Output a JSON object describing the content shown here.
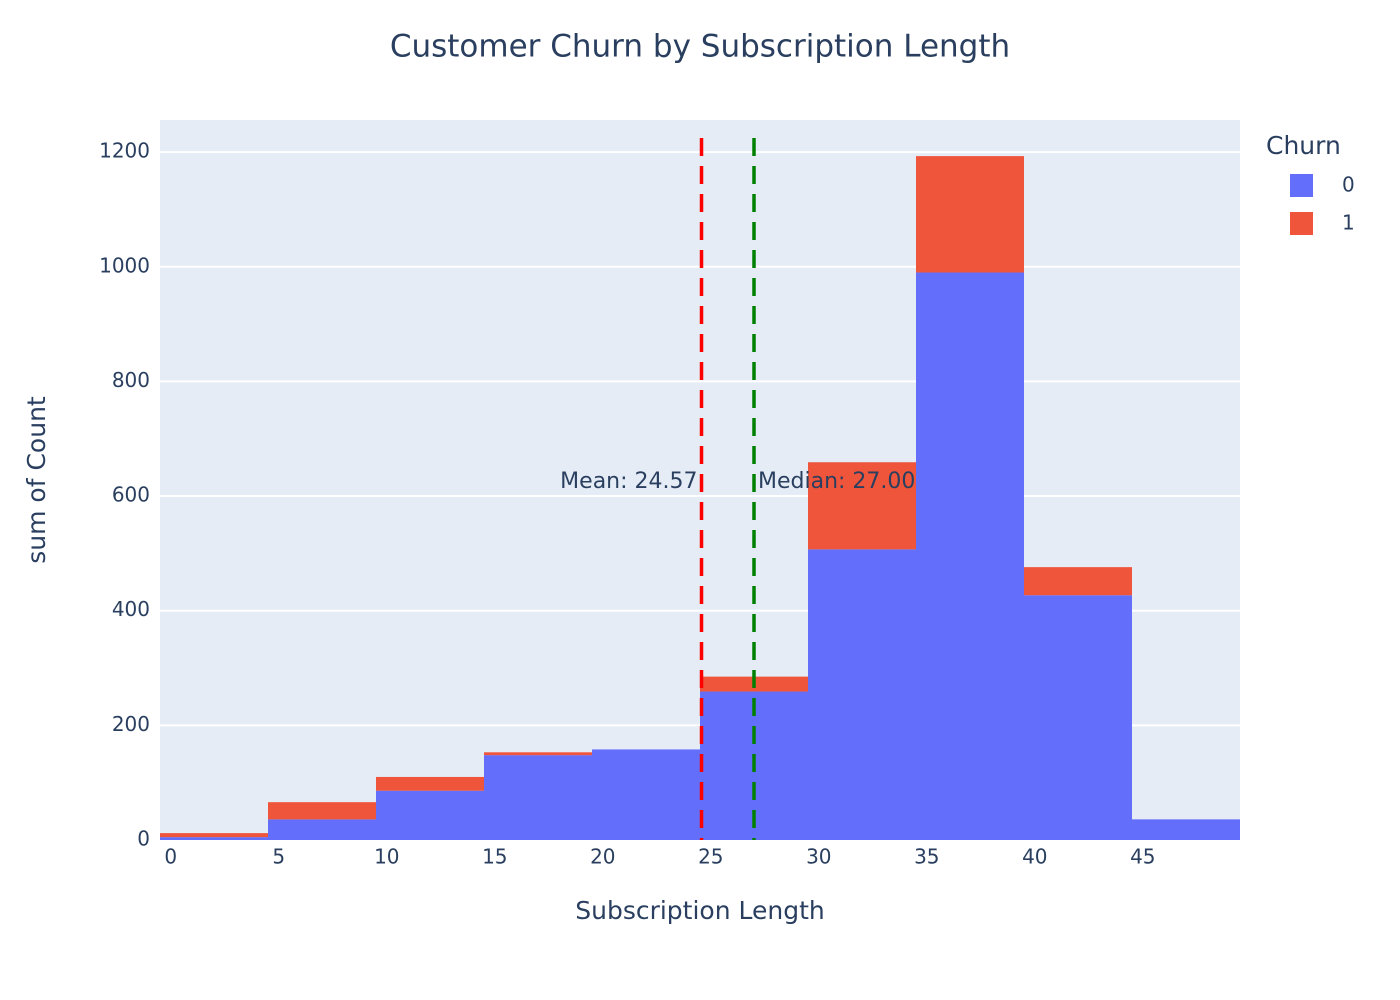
{
  "chart_data": {
    "type": "histogram",
    "title": "Customer Churn by Subscription Length",
    "x_label": "Subscription Length",
    "y_label": "sum of Count",
    "legend_title": "Churn",
    "legend_position": "right",
    "barmode": "stack",
    "grid": true,
    "bins": [
      -0.5,
      4.5,
      9.5,
      14.5,
      19.5,
      24.5,
      29.5,
      34.5,
      39.5,
      44.5,
      49.5
    ],
    "series": [
      {
        "name": "0",
        "color": "#636efa",
        "values": [
          5,
          36,
          86,
          148,
          158,
          259,
          507,
          990,
          427,
          36
        ]
      },
      {
        "name": "1",
        "color": "#ef553b",
        "values": [
          7,
          30,
          24,
          5,
          0,
          26,
          152,
          203,
          49,
          0
        ]
      }
    ],
    "xlim": [
      -0.5,
      49.5
    ],
    "ylim": [
      0,
      1256
    ],
    "xticks": [
      0,
      5,
      10,
      15,
      20,
      25,
      30,
      35,
      40,
      45
    ],
    "yticks": [
      0,
      200,
      400,
      600,
      800,
      1000,
      1200
    ],
    "vlines": [
      {
        "x": 24.57,
        "label": "Mean: 24.57",
        "color": "#ff0000",
        "anchor": "end"
      },
      {
        "x": 27.0,
        "label": "Median: 27.00",
        "color": "#008000",
        "anchor": "start"
      }
    ]
  }
}
